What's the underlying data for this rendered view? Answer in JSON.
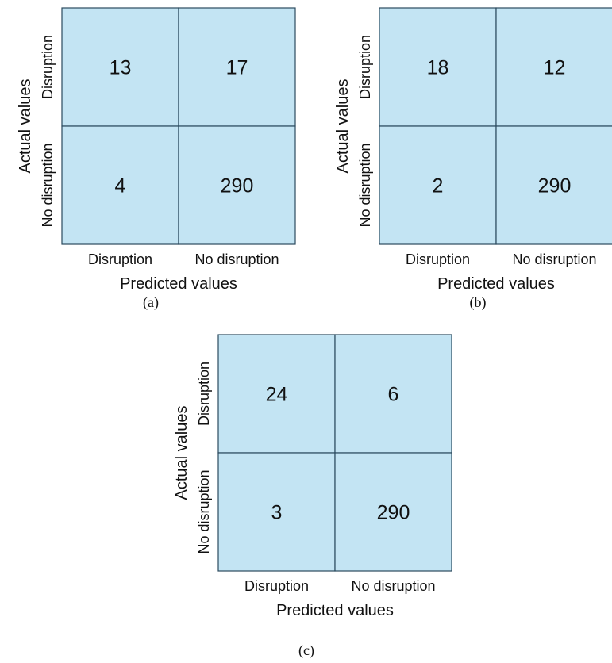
{
  "labels": {
    "class_positive": "Disruption",
    "class_negative": "No disruption",
    "xlabel": "Predicted values",
    "ylabel": "Actual values"
  },
  "colors": {
    "cell_fill": "#c3e4f3",
    "cell_stroke": "#2b4a5e"
  },
  "chart_data": [
    {
      "type": "heatmap",
      "caption": "(a)",
      "xlabel": "Predicted values",
      "ylabel": "Actual values",
      "x_categories": [
        "Disruption",
        "No disruption"
      ],
      "y_categories": [
        "Disruption",
        "No disruption"
      ],
      "values": [
        [
          13,
          17
        ],
        [
          4,
          290
        ]
      ]
    },
    {
      "type": "heatmap",
      "caption": "(b)",
      "xlabel": "Predicted values",
      "ylabel": "Actual values",
      "x_categories": [
        "Disruption",
        "No disruption"
      ],
      "y_categories": [
        "Disruption",
        "No disruption"
      ],
      "values": [
        [
          18,
          12
        ],
        [
          2,
          290
        ]
      ]
    },
    {
      "type": "heatmap",
      "caption": "(c)",
      "xlabel": "Predicted values",
      "ylabel": "Actual values",
      "x_categories": [
        "Disruption",
        "No disruption"
      ],
      "y_categories": [
        "Disruption",
        "No disruption"
      ],
      "values": [
        [
          24,
          6
        ],
        [
          3,
          290
        ]
      ]
    }
  ]
}
